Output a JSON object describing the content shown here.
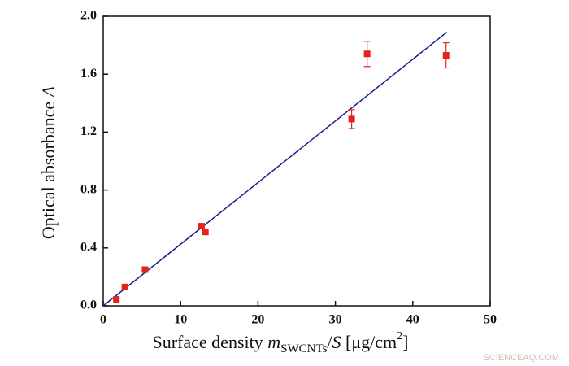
{
  "chart_data": {
    "type": "scatter",
    "xlabel": [
      "Surface density ",
      "m",
      "SWCNTs",
      "/",
      "S",
      " [μg/cm",
      "2",
      "]"
    ],
    "ylabel": [
      "Optical absorbance ",
      "A"
    ],
    "x": [
      1.7,
      2.8,
      5.4,
      12.7,
      13.2,
      32.1,
      34.1,
      44.3
    ],
    "y": [
      0.045,
      0.13,
      0.25,
      0.55,
      0.51,
      1.29,
      1.74,
      1.73
    ],
    "errors": [
      null,
      null,
      null,
      null,
      null,
      0.065,
      0.087,
      0.087
    ],
    "color": "#e3231b",
    "fit": {
      "x": [
        0,
        44.4
      ],
      "y": [
        0.0,
        1.89
      ],
      "color": "#1c1c8f"
    },
    "xlim": [
      0,
      50
    ],
    "xticks": [
      0,
      10,
      20,
      30,
      40,
      50
    ],
    "ylim": [
      0,
      2.0
    ],
    "yticks": [
      {
        "value": 0,
        "label": "0.0"
      },
      0.4,
      0.8,
      1.2,
      1.6,
      {
        "value": 2.0,
        "label": "2.0"
      }
    ],
    "watermark": "SCIENCEAQ.COM"
  }
}
